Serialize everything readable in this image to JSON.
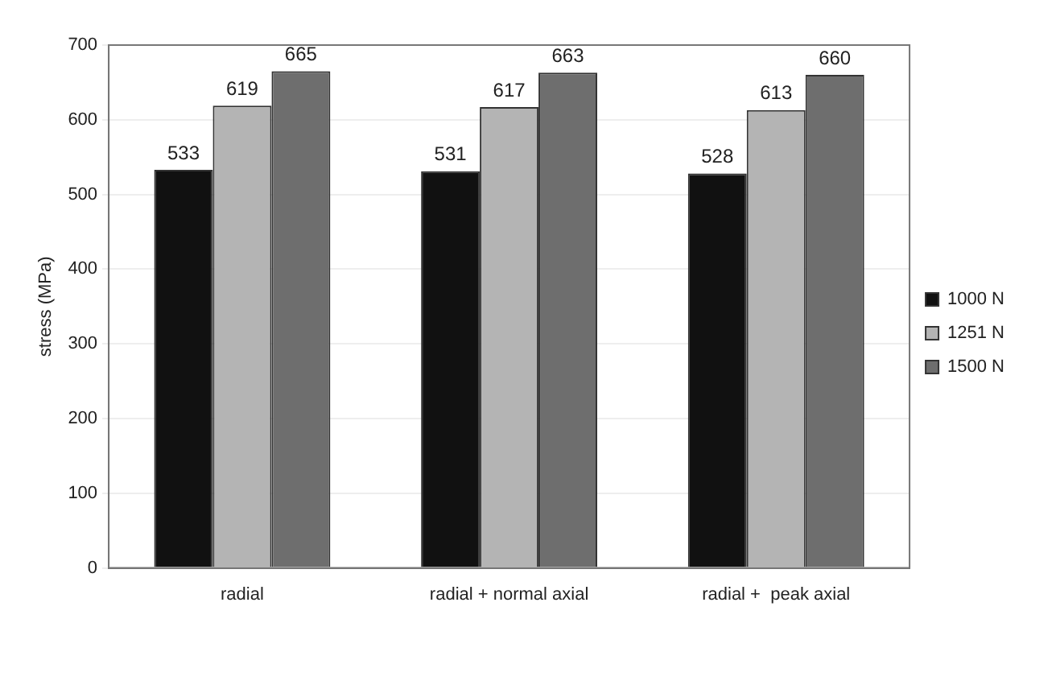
{
  "chart_data": {
    "type": "bar",
    "ylabel": "stress (MPa)",
    "categories": [
      "radial",
      "radial + normal axial",
      "radial +  peak axial"
    ],
    "series": [
      {
        "name": "1000 N",
        "color": "#111111",
        "values": [
          533,
          531,
          528
        ]
      },
      {
        "name": "1251 N",
        "color": "#b4b4b4",
        "values": [
          619,
          617,
          613
        ]
      },
      {
        "name": "1500 N",
        "color": "#6e6e6e",
        "values": [
          665,
          663,
          660
        ]
      }
    ],
    "ylim": [
      0,
      700
    ],
    "yticks": [
      0,
      100,
      200,
      300,
      400,
      500,
      600,
      700
    ],
    "grid": "y",
    "legend": "right",
    "data_labels": true
  }
}
